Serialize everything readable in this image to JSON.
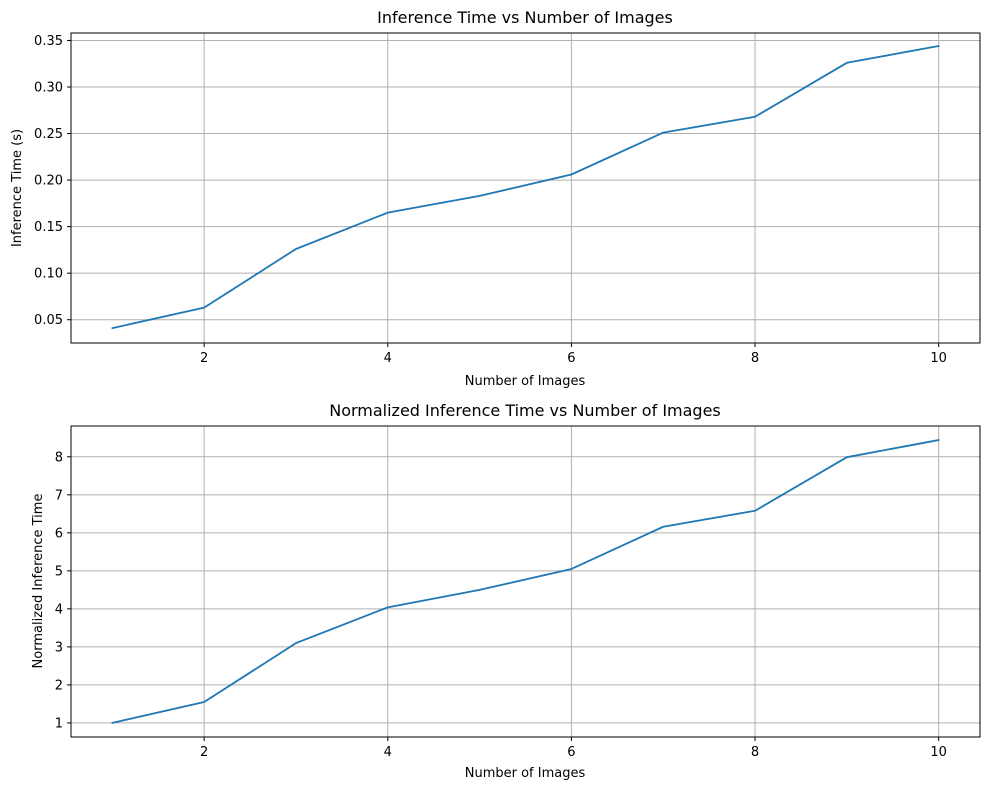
{
  "chart_data": [
    {
      "type": "line",
      "title": "Inference Time vs Number of Images",
      "xlabel": "Number of Images",
      "ylabel": "Inference Time (s)",
      "xlim": [
        0.55,
        10.45
      ],
      "ylim": [
        0.025,
        0.358
      ],
      "xticks": [
        2,
        4,
        6,
        8,
        10
      ],
      "yticks": [
        0.05,
        0.1,
        0.15,
        0.2,
        0.25,
        0.3,
        0.35
      ],
      "ytick_labels": [
        "0.05",
        "0.10",
        "0.15",
        "0.20",
        "0.25",
        "0.30",
        "0.35"
      ],
      "grid": true,
      "series": [
        {
          "color": "#1f77b4",
          "x": [
            1,
            2,
            3,
            4,
            5,
            6,
            7,
            8,
            9,
            10
          ],
          "y": [
            0.041,
            0.063,
            0.126,
            0.165,
            0.183,
            0.206,
            0.251,
            0.268,
            0.326,
            0.344
          ]
        }
      ]
    },
    {
      "type": "line",
      "title": "Normalized Inference Time vs Number of Images",
      "xlabel": "Number of Images",
      "ylabel": "Normalized Inference Time",
      "xlim": [
        0.55,
        10.45
      ],
      "ylim": [
        0.63,
        8.81
      ],
      "xticks": [
        2,
        4,
        6,
        8,
        10
      ],
      "yticks": [
        1,
        2,
        3,
        4,
        5,
        6,
        7,
        8
      ],
      "ytick_labels": [
        "1",
        "2",
        "3",
        "4",
        "5",
        "6",
        "7",
        "8"
      ],
      "grid": true,
      "series": [
        {
          "color": "#1f77b4",
          "x": [
            1,
            2,
            3,
            4,
            5,
            6,
            7,
            8,
            9,
            10
          ],
          "y": [
            1.0,
            1.55,
            3.1,
            4.04,
            4.5,
            5.05,
            6.16,
            6.58,
            7.99,
            8.44
          ]
        }
      ]
    }
  ]
}
